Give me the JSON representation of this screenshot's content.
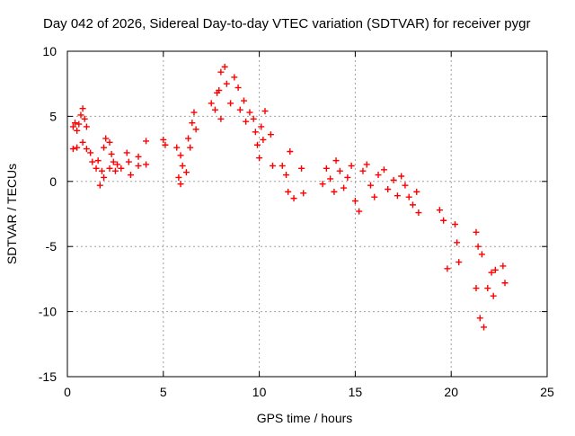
{
  "chart_data": {
    "type": "scatter",
    "title": "Day 042 of 2026, Sidereal Day-to-day VTEC variation (SDTVAR) for receiver pygr",
    "xlabel": "GPS time / hours",
    "ylabel": "SDTVAR / TECUs",
    "xlim": [
      0,
      25
    ],
    "ylim": [
      -15,
      10
    ],
    "xticks": [
      "0",
      "5",
      "10",
      "15",
      "20",
      "25"
    ],
    "yticks": [
      "10",
      "5",
      "0",
      "-5",
      "-10",
      "-15"
    ],
    "grid": true,
    "legend": "none",
    "marker": "+",
    "colors": {
      "points": "#ff0000",
      "grid": "#a0a0a0",
      "axes": "#000000"
    },
    "series": [
      {
        "name": "SDTVAR",
        "points": [
          [
            0.3,
            4.2
          ],
          [
            0.4,
            4.5
          ],
          [
            0.5,
            3.9
          ],
          [
            0.6,
            4.4
          ],
          [
            0.7,
            5.1
          ],
          [
            0.8,
            5.6
          ],
          [
            0.9,
            4.8
          ],
          [
            1.0,
            4.2
          ],
          [
            0.3,
            2.5
          ],
          [
            0.5,
            2.6
          ],
          [
            0.8,
            3.0
          ],
          [
            1.0,
            2.5
          ],
          [
            1.2,
            2.2
          ],
          [
            1.3,
            1.5
          ],
          [
            1.5,
            1.0
          ],
          [
            1.6,
            1.6
          ],
          [
            1.8,
            0.8
          ],
          [
            1.9,
            0.3
          ],
          [
            1.7,
            -0.3
          ],
          [
            1.9,
            2.6
          ],
          [
            2.0,
            3.3
          ],
          [
            2.2,
            3.0
          ],
          [
            2.3,
            2.1
          ],
          [
            2.4,
            1.5
          ],
          [
            2.5,
            0.8
          ],
          [
            2.6,
            1.3
          ],
          [
            2.2,
            1.0
          ],
          [
            2.8,
            1.0
          ],
          [
            3.1,
            2.2
          ],
          [
            3.2,
            1.5
          ],
          [
            3.3,
            0.5
          ],
          [
            3.7,
            1.9
          ],
          [
            3.7,
            1.2
          ],
          [
            4.1,
            3.1
          ],
          [
            4.1,
            1.3
          ],
          [
            5.0,
            3.2
          ],
          [
            5.1,
            2.8
          ],
          [
            5.7,
            2.6
          ],
          [
            5.9,
            2.0
          ],
          [
            6.0,
            1.2
          ],
          [
            6.2,
            0.7
          ],
          [
            5.8,
            0.3
          ],
          [
            5.9,
            -0.2
          ],
          [
            6.3,
            3.3
          ],
          [
            6.5,
            4.5
          ],
          [
            6.6,
            5.3
          ],
          [
            6.7,
            4.0
          ],
          [
            6.4,
            2.6
          ],
          [
            7.5,
            6.0
          ],
          [
            7.7,
            5.5
          ],
          [
            7.9,
            7.0
          ],
          [
            8.0,
            8.4
          ],
          [
            8.2,
            8.8
          ],
          [
            8.3,
            7.5
          ],
          [
            8.5,
            6.0
          ],
          [
            7.8,
            6.8
          ],
          [
            8.0,
            4.8
          ],
          [
            8.7,
            8.0
          ],
          [
            8.9,
            7.2
          ],
          [
            9.0,
            5.5
          ],
          [
            9.2,
            6.2
          ],
          [
            9.3,
            4.6
          ],
          [
            9.5,
            5.3
          ],
          [
            9.7,
            4.8
          ],
          [
            9.8,
            3.8
          ],
          [
            9.9,
            2.8
          ],
          [
            10.1,
            4.2
          ],
          [
            10.2,
            3.2
          ],
          [
            10.0,
            1.8
          ],
          [
            10.3,
            5.4
          ],
          [
            10.6,
            3.6
          ],
          [
            10.7,
            1.2
          ],
          [
            11.2,
            1.2
          ],
          [
            11.4,
            0.5
          ],
          [
            11.5,
            -0.8
          ],
          [
            11.6,
            2.3
          ],
          [
            11.8,
            -1.3
          ],
          [
            12.2,
            1.0
          ],
          [
            12.3,
            -0.9
          ],
          [
            13.3,
            -0.2
          ],
          [
            13.5,
            1.0
          ],
          [
            13.7,
            0.2
          ],
          [
            13.9,
            -0.8
          ],
          [
            14.0,
            1.6
          ],
          [
            14.2,
            0.8
          ],
          [
            14.4,
            -0.5
          ],
          [
            14.6,
            0.3
          ],
          [
            14.8,
            1.2
          ],
          [
            15.0,
            -1.5
          ],
          [
            15.2,
            -2.3
          ],
          [
            15.4,
            0.8
          ],
          [
            15.6,
            1.3
          ],
          [
            15.8,
            -0.3
          ],
          [
            16.0,
            -1.2
          ],
          [
            16.2,
            0.5
          ],
          [
            16.5,
            0.9
          ],
          [
            16.7,
            -0.6
          ],
          [
            17.0,
            0.1
          ],
          [
            17.2,
            -1.1
          ],
          [
            17.4,
            0.4
          ],
          [
            17.6,
            -0.3
          ],
          [
            17.8,
            -1.2
          ],
          [
            18.0,
            -1.8
          ],
          [
            18.2,
            -0.8
          ],
          [
            18.3,
            -2.4
          ],
          [
            19.4,
            -2.2
          ],
          [
            19.6,
            -3.0
          ],
          [
            19.8,
            -6.7
          ],
          [
            20.2,
            -3.3
          ],
          [
            20.3,
            -4.7
          ],
          [
            20.4,
            -6.2
          ],
          [
            21.3,
            -3.9
          ],
          [
            21.4,
            -5.0
          ],
          [
            21.6,
            -5.6
          ],
          [
            21.3,
            -8.2
          ],
          [
            21.5,
            -10.5
          ],
          [
            21.7,
            -11.2
          ],
          [
            21.9,
            -8.2
          ],
          [
            22.1,
            -7.0
          ],
          [
            22.2,
            -8.8
          ],
          [
            22.3,
            -6.8
          ],
          [
            22.7,
            -6.5
          ],
          [
            22.8,
            -7.8
          ]
        ]
      }
    ]
  }
}
